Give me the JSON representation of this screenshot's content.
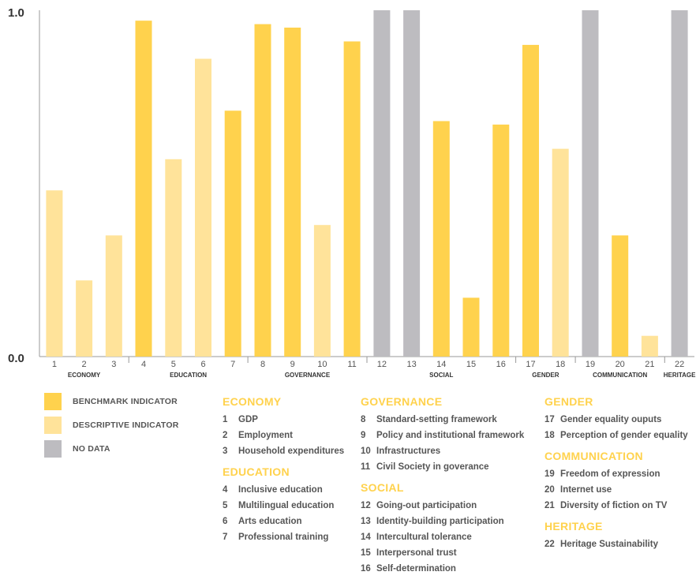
{
  "colors": {
    "benchmark": "#FFD24D",
    "descriptive": "#FFE39A",
    "nodata": "#BDBCC0",
    "axis": "#999999",
    "title_accent": "#FFD24D"
  },
  "chart_data": {
    "type": "bar",
    "categories": [
      "1",
      "2",
      "3",
      "4",
      "5",
      "6",
      "7",
      "8",
      "9",
      "10",
      "11",
      "12",
      "13",
      "14",
      "15",
      "16",
      "17",
      "18",
      "19",
      "20",
      "21",
      "22"
    ],
    "values": [
      0.48,
      0.22,
      0.35,
      0.97,
      0.57,
      0.86,
      0.71,
      0.96,
      0.95,
      0.38,
      0.91,
      1.0,
      1.0,
      0.68,
      0.17,
      0.67,
      0.9,
      0.6,
      1.0,
      0.35,
      0.06,
      1.0
    ],
    "kinds": [
      "descriptive",
      "descriptive",
      "descriptive",
      "benchmark",
      "descriptive",
      "descriptive",
      "benchmark",
      "benchmark",
      "benchmark",
      "descriptive",
      "benchmark",
      "nodata",
      "nodata",
      "benchmark",
      "benchmark",
      "benchmark",
      "benchmark",
      "descriptive",
      "nodata",
      "benchmark",
      "descriptive",
      "nodata"
    ],
    "ylim": [
      0,
      1
    ],
    "ytick_labels": [
      "0.0",
      "1.0"
    ],
    "groups": [
      {
        "label": "ECONOMY",
        "from": 1,
        "to": 3
      },
      {
        "label": "EDUCATION",
        "from": 4,
        "to": 7
      },
      {
        "label": "GOVERNANCE",
        "from": 8,
        "to": 11
      },
      {
        "label": "SOCIAL",
        "from": 12,
        "to": 16
      },
      {
        "label": "GENDER",
        "from": 17,
        "to": 18
      },
      {
        "label": "COMMUNICATION",
        "from": 19,
        "to": 21
      },
      {
        "label": "HERITAGE",
        "from": 22,
        "to": 22
      }
    ],
    "grid": false
  },
  "legend": [
    {
      "kind": "benchmark",
      "label": "BENCHMARK INDICATOR"
    },
    {
      "kind": "descriptive",
      "label": "DESCRIPTIVE INDICATOR"
    },
    {
      "kind": "nodata",
      "label": "NO DATA"
    }
  ],
  "category_columns": [
    [
      {
        "title": "ECONOMY",
        "items": [
          {
            "num": "1",
            "label": "GDP"
          },
          {
            "num": "2",
            "label": "Employment"
          },
          {
            "num": "3",
            "label": "Household expenditures"
          }
        ]
      },
      {
        "title": "EDUCATION",
        "items": [
          {
            "num": "4",
            "label": "Inclusive education"
          },
          {
            "num": "5",
            "label": "Multilingual education"
          },
          {
            "num": "6",
            "label": "Arts education"
          },
          {
            "num": "7",
            "label": "Professional training"
          }
        ]
      }
    ],
    [
      {
        "title": "GOVERNANCE",
        "items": [
          {
            "num": "8",
            "label": "Standard-setting framework"
          },
          {
            "num": "9",
            "label": "Policy and institutional framework"
          },
          {
            "num": "10",
            "label": "Infrastructures"
          },
          {
            "num": "11",
            "label": "Civil Society in goverance"
          }
        ]
      },
      {
        "title": "SOCIAL",
        "items": [
          {
            "num": "12",
            "label": "Going-out participation"
          },
          {
            "num": "13",
            "label": "Identity-building participation"
          },
          {
            "num": "14",
            "label": "Intercultural tolerance"
          },
          {
            "num": "15",
            "label": "Interpersonal trust"
          },
          {
            "num": "16",
            "label": "Self-determination"
          }
        ]
      }
    ],
    [
      {
        "title": "GENDER",
        "items": [
          {
            "num": "17",
            "label": "Gender equality ouputs"
          },
          {
            "num": "18",
            "label": "Perception of gender equality"
          }
        ]
      },
      {
        "title": "COMMUNICATION",
        "items": [
          {
            "num": "19",
            "label": "Freedom of expression"
          },
          {
            "num": "20",
            "label": "Internet use"
          },
          {
            "num": "21",
            "label": "Diversity of fiction on TV"
          }
        ]
      },
      {
        "title": "HERITAGE",
        "items": [
          {
            "num": "22",
            "label": "Heritage Sustainability"
          }
        ]
      }
    ]
  ]
}
